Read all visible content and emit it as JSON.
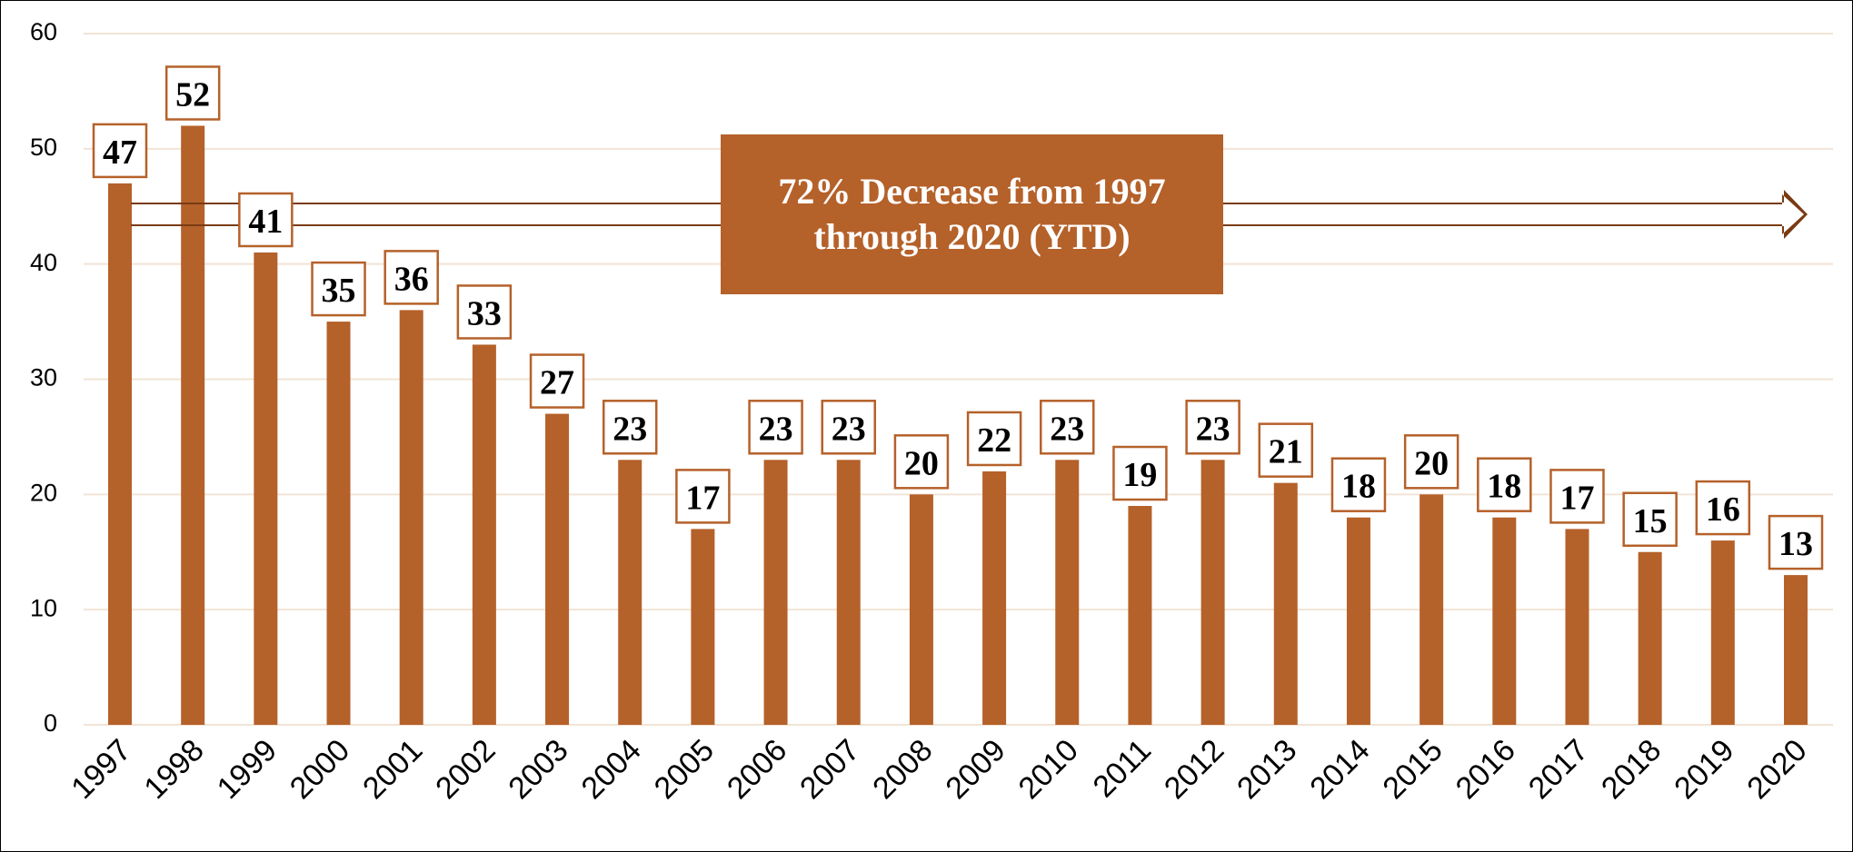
{
  "chart_data": {
    "type": "bar",
    "categories": [
      "1997",
      "1998",
      "1999",
      "2000",
      "2001",
      "2002",
      "2003",
      "2004",
      "2005",
      "2006",
      "2007",
      "2008",
      "2009",
      "2010",
      "2011",
      "2012",
      "2013",
      "2014",
      "2015",
      "2016",
      "2017",
      "2018",
      "2019",
      "2020"
    ],
    "values": [
      47,
      52,
      41,
      35,
      36,
      33,
      27,
      23,
      17,
      23,
      23,
      20,
      22,
      23,
      19,
      23,
      21,
      18,
      20,
      18,
      17,
      15,
      16,
      13
    ],
    "color": "#b5612a",
    "ylim": [
      0,
      60
    ],
    "yticks": [
      0,
      10,
      20,
      30,
      40,
      50,
      60
    ],
    "grid": true,
    "annotation": "72% Decrease from 1997 through 2020 (YTD)"
  }
}
